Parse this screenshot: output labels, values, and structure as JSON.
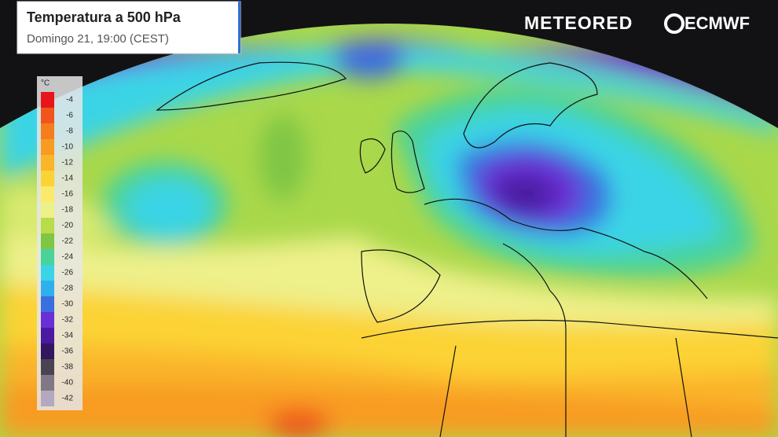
{
  "header": {
    "title": "Temperatura a 500 hPa",
    "subtitle": "Domingo 21, 19:00 (CEST)"
  },
  "logos": {
    "brand": "METEORED",
    "model": "ECMWF"
  },
  "legend": {
    "unit": "°C",
    "ticks": [
      -4,
      -6,
      -8,
      -10,
      -12,
      -14,
      -16,
      -18,
      -20,
      -22,
      -24,
      -26,
      -28,
      -30,
      -32,
      -34,
      -36,
      -38,
      -40,
      -42
    ],
    "colors": [
      "#e8141c",
      "#f0561c",
      "#f57d1e",
      "#f89b22",
      "#fab52a",
      "#fcd336",
      "#fbea6a",
      "#eef08a",
      "#b9dc4a",
      "#7fc644",
      "#49d39a",
      "#3ad4e6",
      "#2fb0ee",
      "#3a6fe0",
      "#6a2fd6",
      "#4a1aa0",
      "#321660",
      "#4a4452",
      "#807884",
      "#b4a8c0"
    ]
  }
}
